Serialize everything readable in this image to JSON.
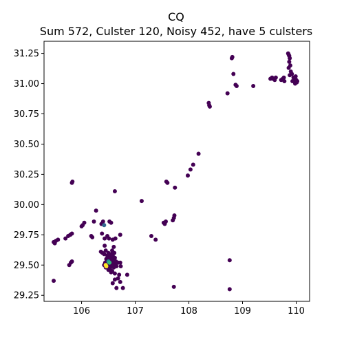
{
  "chart_data": {
    "type": "scatter",
    "title": "CQ",
    "subtitle": "Sum 572, Culster 120, Noisy 452, have 5 culsters",
    "xlabel": "",
    "ylabel": "",
    "xlim": [
      105.3,
      110.25
    ],
    "ylim": [
      29.2,
      31.35
    ],
    "xticks": [
      106,
      107,
      108,
      109,
      110
    ],
    "yticks": [
      29.25,
      29.5,
      29.75,
      30.0,
      30.25,
      30.5,
      30.75,
      31.0,
      31.25
    ],
    "xtick_labels": [
      "106",
      "107",
      "108",
      "109",
      "110"
    ],
    "ytick_labels": [
      "29.25",
      "29.50",
      "29.75",
      "30.00",
      "30.25",
      "30.50",
      "30.75",
      "31.00",
      "31.25"
    ],
    "grid": false,
    "colors": {
      "noise": "#440154",
      "cluster_1": "#31688e",
      "cluster_2": "#21918c",
      "cluster_3": "#35b779",
      "cluster_4": "#fde725"
    },
    "series": [
      {
        "color_key": "noise",
        "points": [
          [
            105.48,
            29.69
          ],
          [
            105.5,
            29.68
          ],
          [
            105.52,
            29.7
          ],
          [
            105.56,
            29.71
          ],
          [
            105.48,
            29.37
          ],
          [
            105.7,
            29.72
          ],
          [
            105.75,
            29.74
          ],
          [
            105.79,
            29.75
          ],
          [
            105.82,
            29.76
          ],
          [
            105.77,
            29.5
          ],
          [
            105.8,
            29.52
          ],
          [
            105.82,
            29.53
          ],
          [
            105.83,
            30.19
          ],
          [
            105.82,
            30.18
          ],
          [
            106.02,
            29.83
          ],
          [
            106.05,
            29.85
          ],
          [
            106.0,
            29.82
          ],
          [
            106.18,
            29.74
          ],
          [
            106.2,
            29.73
          ],
          [
            106.23,
            29.86
          ],
          [
            106.27,
            29.95
          ],
          [
            106.37,
            29.84
          ],
          [
            106.4,
            29.86
          ],
          [
            106.52,
            29.86
          ],
          [
            106.55,
            29.85
          ],
          [
            106.38,
            29.76
          ],
          [
            106.43,
            29.72
          ],
          [
            106.48,
            29.74
          ],
          [
            106.51,
            29.72
          ],
          [
            106.58,
            29.71
          ],
          [
            106.6,
            29.65
          ],
          [
            106.63,
            29.72
          ],
          [
            106.72,
            29.75
          ],
          [
            106.62,
            30.11
          ],
          [
            106.36,
            29.61
          ],
          [
            106.39,
            29.6
          ],
          [
            106.42,
            29.59
          ],
          [
            106.45,
            29.62
          ],
          [
            106.48,
            29.58
          ],
          [
            106.5,
            29.6
          ],
          [
            106.52,
            29.57
          ],
          [
            106.55,
            29.59
          ],
          [
            106.57,
            29.62
          ],
          [
            106.58,
            29.58
          ],
          [
            106.46,
            29.55
          ],
          [
            106.48,
            29.56
          ],
          [
            106.51,
            29.55
          ],
          [
            106.53,
            29.53
          ],
          [
            106.55,
            29.54
          ],
          [
            106.57,
            29.56
          ],
          [
            106.59,
            29.55
          ],
          [
            106.6,
            29.52
          ],
          [
            106.62,
            29.56
          ],
          [
            106.64,
            29.53
          ],
          [
            106.44,
            29.52
          ],
          [
            106.47,
            29.5
          ],
          [
            106.49,
            29.52
          ],
          [
            106.52,
            29.49
          ],
          [
            106.54,
            29.51
          ],
          [
            106.56,
            29.49
          ],
          [
            106.58,
            29.5
          ],
          [
            106.6,
            29.48
          ],
          [
            106.63,
            29.5
          ],
          [
            106.65,
            29.49
          ],
          [
            106.68,
            29.52
          ],
          [
            106.72,
            29.52
          ],
          [
            106.73,
            29.49
          ],
          [
            106.5,
            29.46
          ],
          [
            106.53,
            29.47
          ],
          [
            106.55,
            29.44
          ],
          [
            106.57,
            29.45
          ],
          [
            106.45,
            29.48
          ],
          [
            106.42,
            29.5
          ],
          [
            106.61,
            29.6
          ],
          [
            106.43,
            29.66
          ],
          [
            106.62,
            29.43
          ],
          [
            106.7,
            29.42
          ],
          [
            106.85,
            29.42
          ],
          [
            106.58,
            29.35
          ],
          [
            106.68,
            29.39
          ],
          [
            106.62,
            29.38
          ],
          [
            106.72,
            29.36
          ],
          [
            106.77,
            29.31
          ],
          [
            106.65,
            29.31
          ],
          [
            107.12,
            30.03
          ],
          [
            107.3,
            29.74
          ],
          [
            107.38,
            29.71
          ],
          [
            107.53,
            29.85
          ],
          [
            107.55,
            29.84
          ],
          [
            107.57,
            29.86
          ],
          [
            107.58,
            30.19
          ],
          [
            107.6,
            30.18
          ],
          [
            107.7,
            29.87
          ],
          [
            107.72,
            29.89
          ],
          [
            107.73,
            29.91
          ],
          [
            107.74,
            30.14
          ],
          [
            107.72,
            29.32
          ],
          [
            107.98,
            30.24
          ],
          [
            108.03,
            30.29
          ],
          [
            108.08,
            30.33
          ],
          [
            108.18,
            30.42
          ],
          [
            108.37,
            30.84
          ],
          [
            108.38,
            30.82
          ],
          [
            108.39,
            30.81
          ],
          [
            108.72,
            30.92
          ],
          [
            108.8,
            31.21
          ],
          [
            108.81,
            31.22
          ],
          [
            108.83,
            31.08
          ],
          [
            108.87,
            30.99
          ],
          [
            108.89,
            30.98
          ],
          [
            108.76,
            29.54
          ],
          [
            108.76,
            29.3
          ],
          [
            109.2,
            30.98
          ],
          [
            109.52,
            31.04
          ],
          [
            109.55,
            31.05
          ],
          [
            109.57,
            31.04
          ],
          [
            109.6,
            31.03
          ],
          [
            109.62,
            31.05
          ],
          [
            109.72,
            31.03
          ],
          [
            109.75,
            31.04
          ],
          [
            109.77,
            31.05
          ],
          [
            109.78,
            31.02
          ],
          [
            109.85,
            31.25
          ],
          [
            109.86,
            31.24
          ],
          [
            109.87,
            31.23
          ],
          [
            109.88,
            31.21
          ],
          [
            109.87,
            31.18
          ],
          [
            109.89,
            31.15
          ],
          [
            109.86,
            31.13
          ],
          [
            109.9,
            31.1
          ],
          [
            109.92,
            31.08
          ],
          [
            109.88,
            31.07
          ],
          [
            109.95,
            31.05
          ],
          [
            109.97,
            31.03
          ],
          [
            109.93,
            31.02
          ],
          [
            110.0,
            31.03
          ],
          [
            110.01,
            31.01
          ],
          [
            109.98,
            31.0
          ],
          [
            110.02,
            31.02
          ],
          [
            109.99,
            31.06
          ]
        ]
      },
      {
        "color_key": "cluster_1",
        "points": [
          [
            106.42,
            29.83
          ]
        ]
      },
      {
        "color_key": "cluster_2",
        "points": [
          [
            106.5,
            29.53
          ]
        ]
      },
      {
        "color_key": "cluster_3",
        "points": [
          [
            106.52,
            29.52
          ]
        ]
      },
      {
        "color_key": "cluster_4",
        "points": [
          [
            106.45,
            29.5
          ],
          [
            106.46,
            29.49
          ]
        ]
      }
    ]
  }
}
